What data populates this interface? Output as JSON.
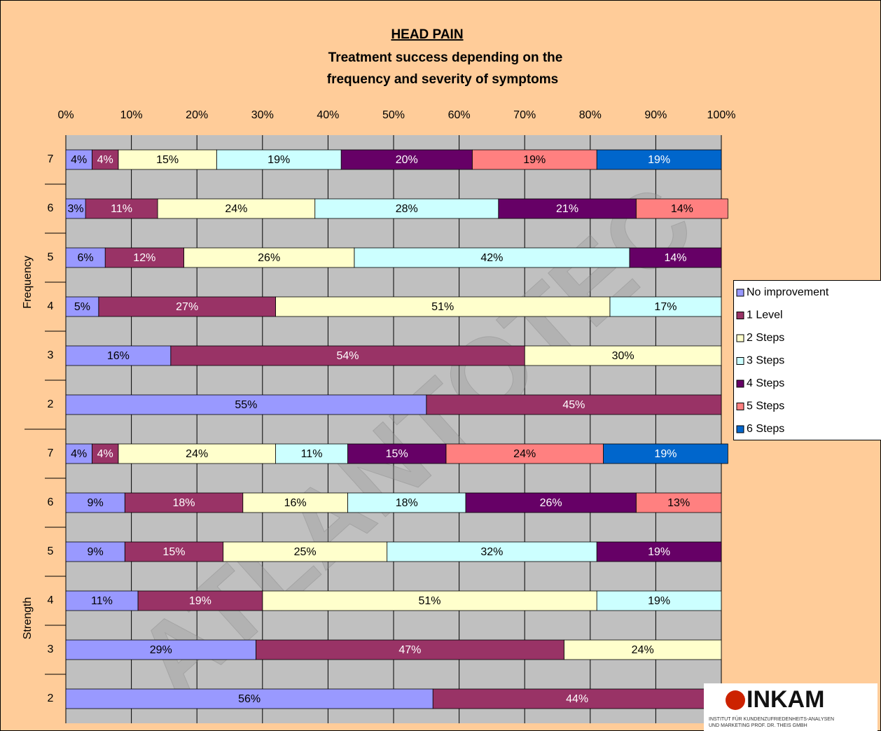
{
  "chart_data": {
    "type": "stacked-bar-horizontal",
    "title": "HEAD PAIN",
    "subtitle": [
      "Treatment success depending on the",
      "frequency and severity of symptoms"
    ],
    "groups": [
      {
        "name": "Frequency",
        "categories": [
          "7",
          "6",
          "5",
          "4",
          "3",
          "2"
        ]
      },
      {
        "name": "Strength",
        "categories": [
          "7",
          "6",
          "5",
          "4",
          "3",
          "2"
        ]
      }
    ],
    "xlim": [
      0,
      100
    ],
    "xticks": [
      {
        "value": 0,
        "label": "0%"
      },
      {
        "value": 10,
        "label": "10%"
      },
      {
        "value": 20,
        "label": "20%"
      },
      {
        "value": 30,
        "label": "30%"
      },
      {
        "value": 40,
        "label": "40%"
      },
      {
        "value": 50,
        "label": "50%"
      },
      {
        "value": 60,
        "label": "60%"
      },
      {
        "value": 70,
        "label": "70%"
      },
      {
        "value": 80,
        "label": "80%"
      },
      {
        "value": 90,
        "label": "90%"
      },
      {
        "value": 100,
        "label": "100%"
      }
    ],
    "grid": true,
    "legend": "right",
    "series": [
      {
        "name": "No improvement",
        "color": "#9999ff",
        "label_color": "#000000",
        "values": [
          4,
          3,
          6,
          5,
          16,
          55,
          4,
          9,
          9,
          11,
          29,
          56
        ],
        "value_labels": [
          "4%",
          "3%",
          "6%",
          "5%",
          "16%",
          "55%",
          "4%",
          "9%",
          "9%",
          "11%",
          "29%",
          "56%"
        ]
      },
      {
        "name": "1 Level",
        "color": "#993366",
        "label_color": "#ffffff",
        "values": [
          4,
          11,
          12,
          27,
          54,
          45,
          4,
          18,
          15,
          19,
          47,
          44
        ],
        "value_labels": [
          "4%",
          "11%",
          "12%",
          "27%",
          "54%",
          "45%",
          "4%",
          "18%",
          "15%",
          "19%",
          "47%",
          "44%"
        ]
      },
      {
        "name": "2 Steps",
        "color": "#ffffcc",
        "label_color": "#000000",
        "values": [
          15,
          24,
          26,
          51,
          30,
          null,
          24,
          16,
          25,
          51,
          24,
          null
        ],
        "value_labels": [
          "15%",
          "24%",
          "26%",
          "51%",
          "30%",
          null,
          "24%",
          "16%",
          "25%",
          "51%",
          "24%",
          null
        ]
      },
      {
        "name": "3 Steps",
        "color": "#ccffff",
        "label_color": "#000000",
        "values": [
          19,
          28,
          42,
          17,
          null,
          null,
          11,
          18,
          32,
          19,
          null,
          null
        ],
        "value_labels": [
          "19%",
          "28%",
          "42%",
          "17%",
          null,
          null,
          "11%",
          "18%",
          "32%",
          "19%",
          null,
          null
        ]
      },
      {
        "name": "4 Steps",
        "color": "#660066",
        "label_color": "#ffffff",
        "values": [
          20,
          21,
          14,
          null,
          null,
          null,
          15,
          26,
          19,
          null,
          null,
          null
        ],
        "value_labels": [
          "20%",
          "21%",
          "14%",
          null,
          null,
          null,
          "15%",
          "26%",
          "19%",
          null,
          null,
          null
        ]
      },
      {
        "name": "5 Steps",
        "color": "#ff8080",
        "label_color": "#000000",
        "values": [
          19,
          14,
          null,
          null,
          null,
          null,
          24,
          13,
          null,
          null,
          null,
          null
        ],
        "value_labels": [
          "19%",
          "14%",
          null,
          null,
          null,
          null,
          "24%",
          "13%",
          null,
          null,
          null,
          null
        ]
      },
      {
        "name": "6 Steps",
        "color": "#0066cc",
        "label_color": "#ffffff",
        "values": [
          19,
          null,
          null,
          null,
          null,
          null,
          19,
          null,
          null,
          null,
          null,
          null
        ],
        "value_labels": [
          "19%",
          null,
          null,
          null,
          null,
          null,
          "19%",
          null,
          null,
          null,
          null,
          null
        ]
      }
    ]
  },
  "watermark": "ATLANTOTEC",
  "logo": {
    "name": "INKAM",
    "line1": "INSTITUT FÜR KUNDENZUFRIEDENHEITS-ANALYSEN",
    "line2": "UND MARKETING PROF. DR. THEIS GMBH"
  }
}
